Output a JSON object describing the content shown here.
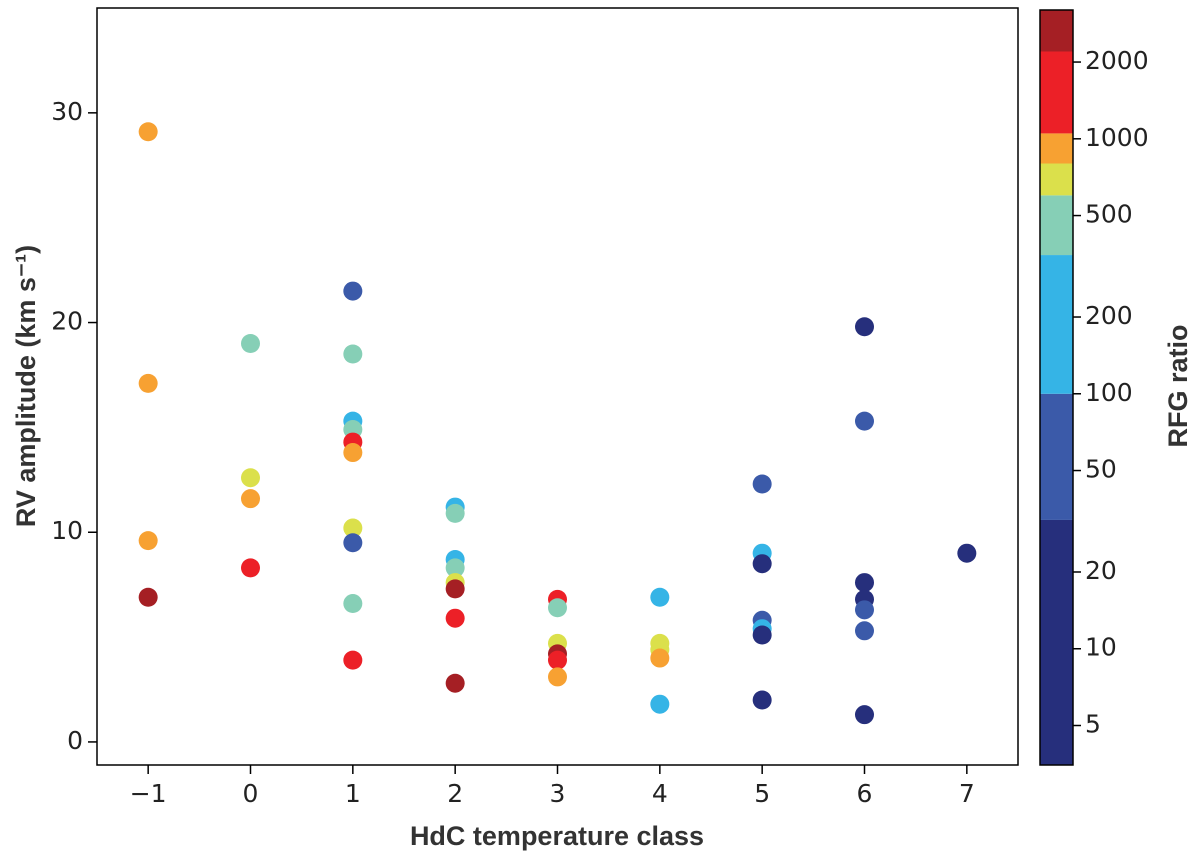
{
  "chart_data": {
    "type": "scatter",
    "xlabel": "HdC temperature class",
    "ylabel": "RV amplitude  (km s⁻¹)",
    "xlim": [
      -1.5,
      7.5
    ],
    "ylim": [
      -1.1,
      35
    ],
    "xticks": [
      {
        "value": -1,
        "label": "−1"
      },
      0,
      1,
      2,
      3,
      4,
      5,
      6,
      7
    ],
    "yticks": [
      0,
      10,
      20,
      30
    ],
    "series": [
      {
        "x": [
          -1,
          -1,
          -1,
          -1,
          0,
          0,
          0,
          0,
          1,
          1,
          1,
          1,
          1,
          1,
          1,
          1,
          1,
          1,
          2,
          2,
          2,
          2,
          2,
          2,
          2,
          2,
          3,
          3,
          3,
          3,
          3,
          3,
          4,
          4,
          4,
          4,
          4,
          5,
          5,
          5,
          5,
          5,
          5,
          5,
          6,
          6,
          6,
          6,
          6,
          6,
          6,
          7
        ],
        "values": [
          29.1,
          17.1,
          9.6,
          6.9,
          19.0,
          12.6,
          11.6,
          8.3,
          21.5,
          18.5,
          15.3,
          14.9,
          14.3,
          13.8,
          10.2,
          9.5,
          6.6,
          3.9,
          11.2,
          10.9,
          8.7,
          8.3,
          7.6,
          7.3,
          5.9,
          2.8,
          6.8,
          6.4,
          4.7,
          4.2,
          3.9,
          3.1,
          6.9,
          4.7,
          4.4,
          4.0,
          1.8,
          12.3,
          9.0,
          8.5,
          5.8,
          5.4,
          5.1,
          2.0,
          19.8,
          15.3,
          7.6,
          6.8,
          6.3,
          5.3,
          1.3,
          9.0
        ],
        "colors": [
          "#f7a132",
          "#f7a132",
          "#f7a132",
          "#a51f24",
          "#86cfb6",
          "#dbe04b",
          "#f7a132",
          "#ec2027",
          "#3b5aa9",
          "#86cfb6",
          "#35b4e6",
          "#86cfb6",
          "#ec2027",
          "#f7a132",
          "#dbe04b",
          "#3b5aa9",
          "#86cfb6",
          "#ec2027",
          "#35b4e6",
          "#86cfb6",
          "#35b4e6",
          "#86cfb6",
          "#dbe04b",
          "#a51f24",
          "#ec2027",
          "#a51f24",
          "#ec2027",
          "#86cfb6",
          "#dbe04b",
          "#a51f24",
          "#ec2027",
          "#f7a132",
          "#35b4e6",
          "#dbe04b",
          "#dbe04b",
          "#f7a132",
          "#35b4e6",
          "#3b5aa9",
          "#35b4e6",
          "#262f7c",
          "#3b5aa9",
          "#35b4e6",
          "#262f7c",
          "#262f7c",
          "#262f7c",
          "#3b5aa9",
          "#262f7c",
          "#262f7c",
          "#3b5aa9",
          "#3b5aa9",
          "#262f7c",
          "#262f7c"
        ]
      }
    ],
    "colorbar": {
      "label": "RFG ratio",
      "log": true,
      "bounds": [
        3.5,
        32,
        100,
        350,
        600,
        800,
        1050,
        2200,
        3200
      ],
      "colors": [
        "#262f7c",
        "#3b5aa9",
        "#35b4e6",
        "#86cfb6",
        "#dbe04b",
        "#f7a132",
        "#ec2027",
        "#a51f24"
      ],
      "ticks": [
        5,
        10,
        20,
        50,
        100,
        200,
        500,
        1000,
        2000
      ]
    }
  }
}
